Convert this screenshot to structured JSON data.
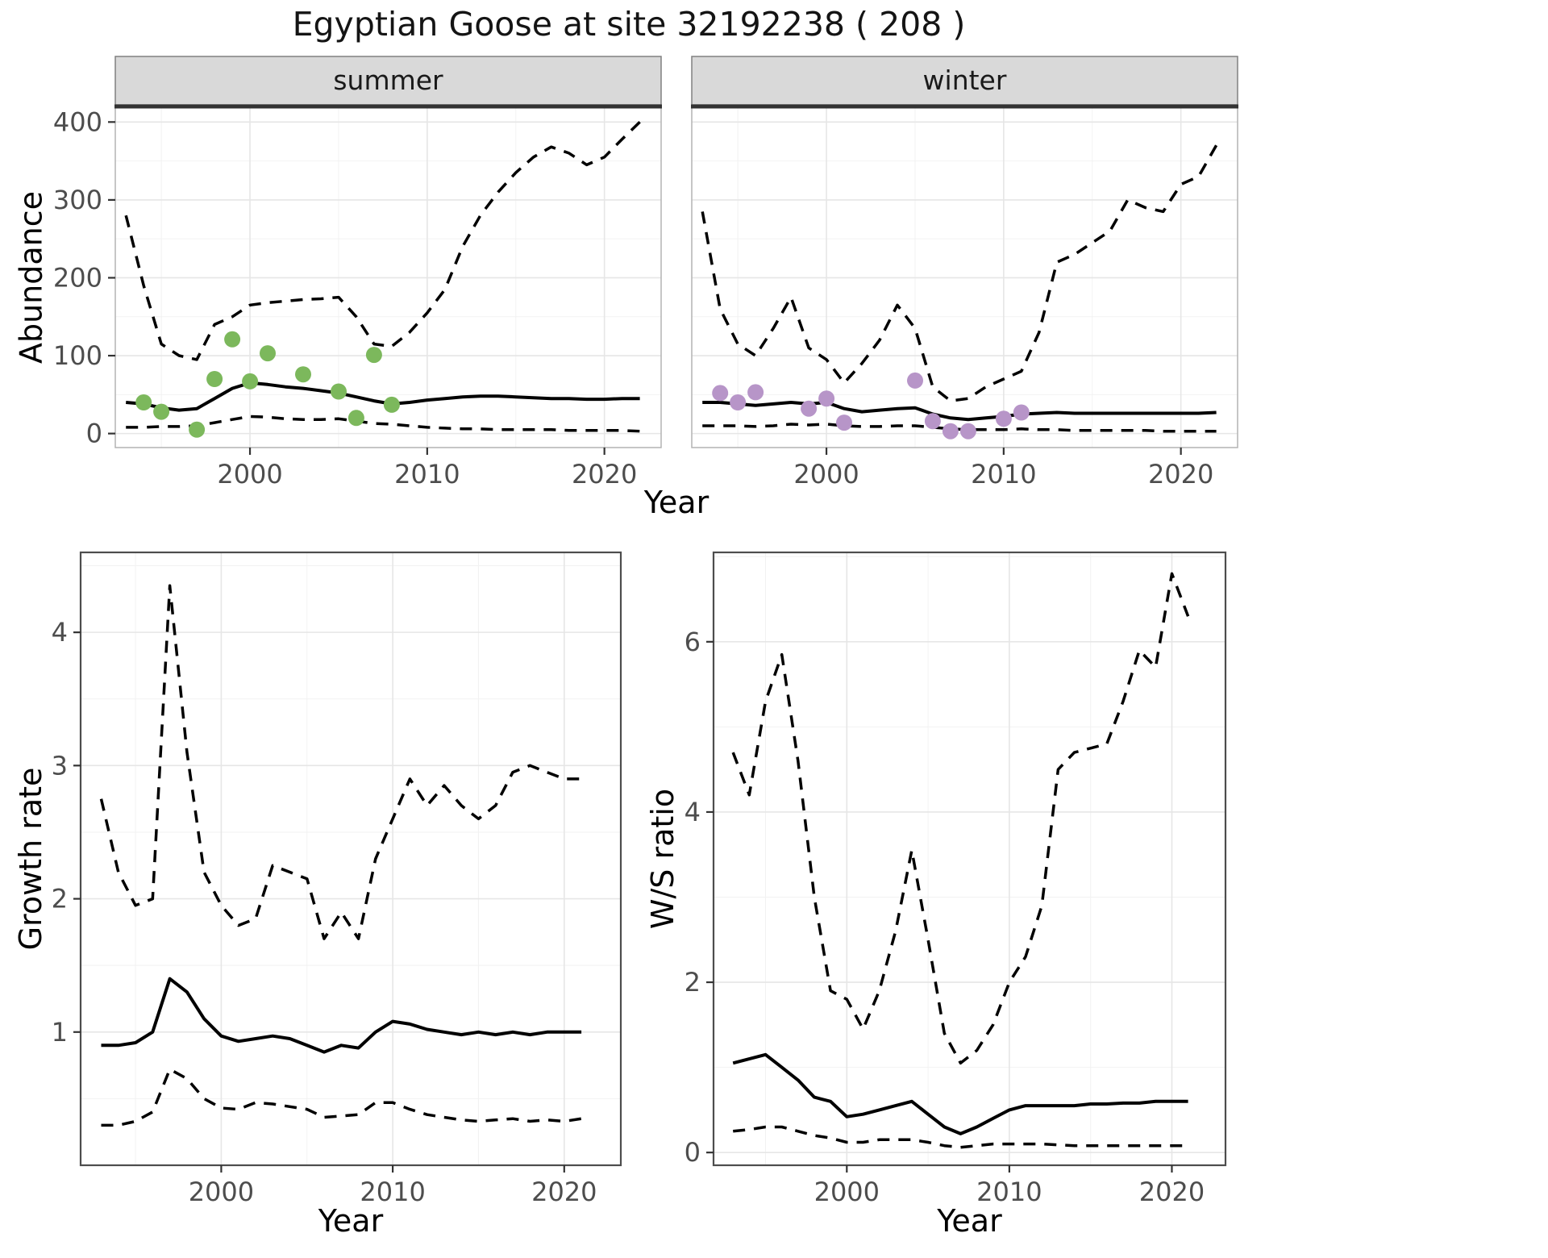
{
  "title": "Egyptian Goose at site 32192238 ( 208 )",
  "style": {
    "background": "#ffffff",
    "panel_bg": "#ffffff",
    "strip_bg": "#d9d9d9",
    "strip_border": "#808080",
    "strip_accent": "#333333",
    "panel_border": "#b3b3b3",
    "bottom_panel_border": "#4d4d4d",
    "grid_color": "#e6e6e6",
    "grid_minor_color": "#f2f2f2",
    "tick_color": "#333333",
    "tick_label_color": "#4d4d4d",
    "line_color": "#000000",
    "summer_point_color": "#7cb85c",
    "winter_point_color": "#b795c8"
  },
  "chart_data": [
    {
      "id": "abundance",
      "type": "line",
      "xlabel": "Year",
      "ylabel": "Abundance",
      "xlim": [
        1992.4,
        2023.2
      ],
      "ylim": [
        -18,
        420
      ],
      "xticks": [
        2000,
        2010,
        2020
      ],
      "yticks": [
        0,
        100,
        200,
        300,
        400
      ],
      "grid": true,
      "legend": "none",
      "years": [
        1993,
        1994,
        1995,
        1996,
        1997,
        1998,
        1999,
        2000,
        2001,
        2002,
        2003,
        2004,
        2005,
        2006,
        2007,
        2008,
        2009,
        2010,
        2011,
        2012,
        2013,
        2014,
        2015,
        2016,
        2017,
        2018,
        2019,
        2020,
        2021,
        2022
      ],
      "panels": [
        {
          "strip": "summer",
          "point_color": "#7cb85c",
          "series": [
            {
              "name": "upper 95% CI",
              "style": "dashed",
              "color": "#000000",
              "y": [
                280,
                190,
                115,
                100,
                95,
                140,
                150,
                165,
                168,
                170,
                172,
                173,
                175,
                150,
                115,
                112,
                130,
                155,
                185,
                240,
                280,
                310,
                335,
                355,
                368,
                360,
                345,
                355,
                378,
                400
              ]
            },
            {
              "name": "modelled median",
              "style": "solid",
              "color": "#000000",
              "y": [
                40,
                38,
                33,
                30,
                32,
                45,
                58,
                65,
                63,
                60,
                58,
                55,
                52,
                47,
                42,
                38,
                40,
                43,
                45,
                47,
                48,
                48,
                47,
                46,
                45,
                45,
                44,
                44,
                45,
                45
              ]
            },
            {
              "name": "lower 95% CI",
              "style": "dashed",
              "color": "#000000",
              "y": [
                8,
                8,
                9,
                9,
                10,
                14,
                18,
                22,
                21,
                19,
                18,
                18,
                19,
                16,
                13,
                12,
                10,
                8,
                7,
                6,
                6,
                5,
                5,
                5,
                5,
                4,
                4,
                4,
                4,
                3
              ]
            }
          ],
          "points": {
            "name": "observed summer counts",
            "x": [
              1994,
              1995,
              1997,
              1998,
              1999,
              2000,
              2001,
              2003,
              2005,
              2006,
              2007,
              2008
            ],
            "y": [
              40,
              28,
              5,
              70,
              121,
              67,
              103,
              76,
              54,
              20,
              101,
              37
            ]
          }
        },
        {
          "strip": "winter",
          "point_color": "#b795c8",
          "series": [
            {
              "name": "upper 95% CI",
              "style": "dashed",
              "color": "#000000",
              "y": [
                285,
                160,
                115,
                100,
                135,
                175,
                110,
                95,
                65,
                90,
                120,
                165,
                135,
                60,
                42,
                45,
                60,
                70,
                80,
                130,
                220,
                230,
                245,
                260,
                300,
                290,
                285,
                320,
                330,
                370
              ]
            },
            {
              "name": "modelled median",
              "style": "solid",
              "color": "#000000",
              "y": [
                40,
                40,
                38,
                36,
                38,
                40,
                38,
                40,
                32,
                28,
                30,
                32,
                33,
                25,
                20,
                18,
                20,
                22,
                25,
                26,
                27,
                26,
                26,
                26,
                26,
                26,
                26,
                26,
                26,
                27
              ]
            },
            {
              "name": "lower 95% CI",
              "style": "dashed",
              "color": "#000000",
              "y": [
                10,
                10,
                10,
                9,
                10,
                12,
                11,
                12,
                10,
                9,
                9,
                10,
                10,
                8,
                6,
                5,
                5,
                5,
                6,
                5,
                5,
                4,
                4,
                4,
                4,
                4,
                3,
                3,
                3,
                3
              ]
            }
          ],
          "points": {
            "name": "observed winter counts",
            "x": [
              1994,
              1995,
              1996,
              1999,
              2000,
              2001,
              2005,
              2006,
              2007,
              2008,
              2010,
              2011
            ],
            "y": [
              52,
              40,
              53,
              32,
              45,
              14,
              68,
              16,
              3,
              3,
              19,
              27
            ]
          }
        }
      ]
    },
    {
      "id": "growth_rate",
      "type": "line",
      "xlabel": "Year",
      "ylabel": "Growth rate",
      "xlim": [
        1991.8,
        2023.3
      ],
      "ylim": [
        0,
        4.6
      ],
      "xticks": [
        2000,
        2010,
        2020
      ],
      "yticks": [
        1,
        2,
        3,
        4
      ],
      "grid": true,
      "legend": "none",
      "years": [
        1993,
        1994,
        1995,
        1996,
        1997,
        1998,
        1999,
        2000,
        2001,
        2002,
        2003,
        2004,
        2005,
        2006,
        2007,
        2008,
        2009,
        2010,
        2011,
        2012,
        2013,
        2014,
        2015,
        2016,
        2017,
        2018,
        2019,
        2020,
        2021
      ],
      "series": [
        {
          "name": "upper 95% CI",
          "style": "dashed",
          "color": "#000000",
          "y": [
            2.75,
            2.2,
            1.95,
            2.0,
            4.35,
            3.1,
            2.2,
            1.95,
            1.8,
            1.85,
            2.25,
            2.2,
            2.15,
            1.7,
            1.9,
            1.7,
            2.3,
            2.6,
            2.9,
            2.7,
            2.85,
            2.7,
            2.6,
            2.7,
            2.95,
            3.0,
            2.95,
            2.9,
            2.9
          ]
        },
        {
          "name": "modelled median",
          "style": "solid",
          "color": "#000000",
          "y": [
            0.9,
            0.9,
            0.92,
            1.0,
            1.4,
            1.3,
            1.1,
            0.97,
            0.93,
            0.95,
            0.97,
            0.95,
            0.9,
            0.85,
            0.9,
            0.88,
            1.0,
            1.08,
            1.06,
            1.02,
            1.0,
            0.98,
            1.0,
            0.98,
            1.0,
            0.98,
            1.0,
            1.0,
            1.0
          ]
        },
        {
          "name": "lower 95% CI",
          "style": "dashed",
          "color": "#000000",
          "y": [
            0.3,
            0.3,
            0.33,
            0.4,
            0.72,
            0.65,
            0.5,
            0.43,
            0.42,
            0.47,
            0.46,
            0.44,
            0.42,
            0.36,
            0.37,
            0.38,
            0.47,
            0.47,
            0.42,
            0.38,
            0.36,
            0.34,
            0.33,
            0.34,
            0.35,
            0.33,
            0.34,
            0.33,
            0.35
          ]
        }
      ]
    },
    {
      "id": "ws_ratio",
      "type": "line",
      "xlabel": "Year",
      "ylabel": "W/S ratio",
      "xlim": [
        1991.8,
        2023.3
      ],
      "ylim": [
        -0.15,
        7.05
      ],
      "xticks": [
        2000,
        2010,
        2020
      ],
      "yticks": [
        0,
        2,
        4,
        6
      ],
      "grid": true,
      "legend": "none",
      "years": [
        1993,
        1994,
        1995,
        1996,
        1997,
        1998,
        1999,
        2000,
        2001,
        2002,
        2003,
        2004,
        2005,
        2006,
        2007,
        2008,
        2009,
        2010,
        2011,
        2012,
        2013,
        2014,
        2015,
        2016,
        2017,
        2018,
        2019,
        2020,
        2021
      ],
      "series": [
        {
          "name": "upper 95% CI",
          "style": "dashed",
          "color": "#000000",
          "y": [
            4.7,
            4.2,
            5.3,
            5.85,
            4.6,
            3.0,
            1.9,
            1.8,
            1.45,
            1.9,
            2.6,
            3.55,
            2.5,
            1.4,
            1.05,
            1.2,
            1.5,
            2.0,
            2.3,
            2.9,
            4.5,
            4.7,
            4.75,
            4.8,
            5.3,
            5.9,
            5.7,
            6.8,
            6.3
          ]
        },
        {
          "name": "modelled median",
          "style": "solid",
          "color": "#000000",
          "y": [
            1.05,
            1.1,
            1.15,
            1.0,
            0.85,
            0.65,
            0.6,
            0.42,
            0.45,
            0.5,
            0.55,
            0.6,
            0.45,
            0.3,
            0.22,
            0.3,
            0.4,
            0.5,
            0.55,
            0.55,
            0.55,
            0.55,
            0.57,
            0.57,
            0.58,
            0.58,
            0.6,
            0.6,
            0.6
          ]
        },
        {
          "name": "lower 95% CI",
          "style": "dashed",
          "color": "#000000",
          "y": [
            0.25,
            0.27,
            0.3,
            0.3,
            0.25,
            0.2,
            0.17,
            0.12,
            0.12,
            0.15,
            0.15,
            0.15,
            0.12,
            0.08,
            0.06,
            0.08,
            0.1,
            0.1,
            0.1,
            0.1,
            0.09,
            0.08,
            0.08,
            0.08,
            0.08,
            0.08,
            0.08,
            0.08,
            0.08
          ]
        }
      ]
    }
  ]
}
